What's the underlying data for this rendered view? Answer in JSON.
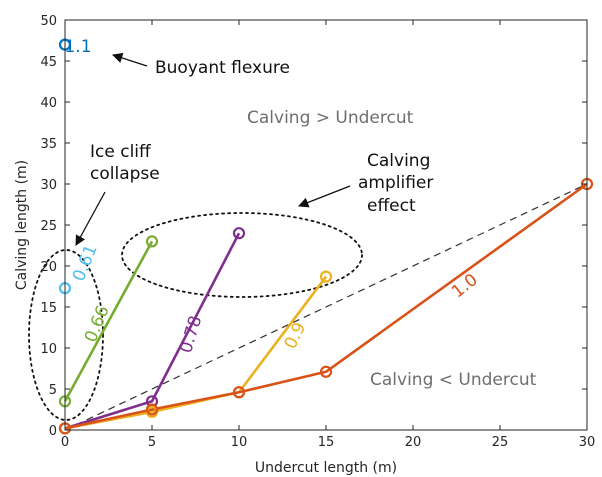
{
  "chart_data": {
    "type": "line",
    "xlabel": "Undercut length (m)",
    "ylabel": "Calving length (m)",
    "xlim": [
      0,
      30
    ],
    "ylim": [
      0,
      50
    ],
    "xticks": [
      0,
      5,
      10,
      15,
      20,
      25,
      30
    ],
    "yticks": [
      0,
      5,
      10,
      15,
      20,
      25,
      30,
      35,
      40,
      45,
      50
    ],
    "grid": false,
    "series": [
      {
        "name": "1.1",
        "color": "#0072BD",
        "points": [
          [
            0,
            47
          ]
        ]
      },
      {
        "name": "0.61",
        "color": "#4DBEEE",
        "points": [
          [
            0,
            17.3
          ]
        ]
      },
      {
        "name": "0.66",
        "color": "#77AC30",
        "points": [
          [
            0,
            3.5
          ],
          [
            5,
            23
          ]
        ]
      },
      {
        "name": "0.78",
        "color": "#7E2F8E",
        "points": [
          [
            0,
            0.2
          ],
          [
            5,
            3.5
          ],
          [
            10,
            24
          ]
        ]
      },
      {
        "name": "0.9",
        "color": "#EDB120",
        "points": [
          [
            0,
            0.2
          ],
          [
            5,
            2.2
          ],
          [
            10,
            4.6
          ],
          [
            15,
            18.7
          ]
        ]
      },
      {
        "name": "1.0",
        "color": "#D95319",
        "points": [
          [
            0,
            0.2
          ],
          [
            5,
            2.5
          ],
          [
            10,
            4.6
          ],
          [
            15,
            7.1
          ],
          [
            30,
            30
          ]
        ]
      }
    ],
    "reference_line": {
      "style": "dashed",
      "points": [
        [
          0,
          0
        ],
        [
          30,
          30
        ]
      ]
    },
    "annotations": {
      "buoyant_flexure": "Buoyant flexure",
      "ice_cliff_collapse": [
        "Ice cliff",
        "collapse"
      ],
      "calving_amplifier": [
        "Calving",
        "amplifier",
        "effect"
      ],
      "calving_gt_undercut": "Calving > Undercut",
      "calving_lt_undercut": "Calving < Undercut"
    }
  }
}
